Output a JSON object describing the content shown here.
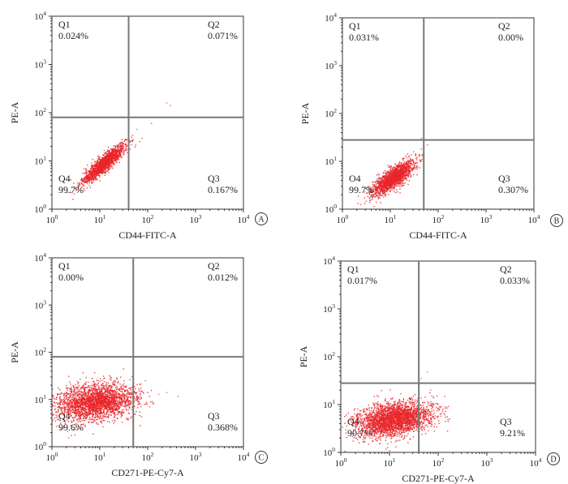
{
  "chart_data": [
    {
      "type": "scatter",
      "panel_label": "A",
      "xlabel": "CD44-FITC-A",
      "ylabel": "PE-A",
      "x_scale": "log",
      "y_scale": "log",
      "xlim": [
        1,
        10000
      ],
      "ylim": [
        1,
        10000
      ],
      "x_ticks": [
        {
          "base": "10",
          "exp": "0"
        },
        {
          "base": "10",
          "exp": "1"
        },
        {
          "base": "10",
          "exp": "2"
        },
        {
          "base": "10",
          "exp": "3"
        },
        {
          "base": "10",
          "exp": "4"
        }
      ],
      "y_ticks": [
        {
          "base": "10",
          "exp": "0"
        },
        {
          "base": "10",
          "exp": "1"
        },
        {
          "base": "10",
          "exp": "2"
        },
        {
          "base": "10",
          "exp": "3"
        },
        {
          "base": "10",
          "exp": "4"
        }
      ],
      "gate": {
        "x": 40,
        "y": 80
      },
      "quadrants": [
        {
          "name": "Q1",
          "percent": "0.024%",
          "position": "top-left"
        },
        {
          "name": "Q2",
          "percent": "0.071%",
          "position": "top-right"
        },
        {
          "name": "Q3",
          "percent": "0.167%",
          "position": "bottom-right"
        },
        {
          "name": "Q4",
          "percent": "99.7%",
          "position": "bottom-left"
        }
      ],
      "population": {
        "center_x": 12,
        "center_y": 9,
        "spread_x": 0.22,
        "spread_y": 0.2,
        "correlation": 0.9,
        "count": 1600
      },
      "sparse_events": [
        [
          250,
          160
        ],
        [
          300,
          140
        ],
        [
          120,
          60
        ],
        [
          60,
          45
        ]
      ],
      "point_color": "#e8262a",
      "grid": false
    },
    {
      "type": "scatter",
      "panel_label": "B",
      "xlabel": "CD44-FITC-A",
      "ylabel": "PE-A",
      "x_scale": "log",
      "y_scale": "log",
      "xlim": [
        1,
        10000
      ],
      "ylim": [
        1,
        10000
      ],
      "x_ticks": [
        {
          "base": "10",
          "exp": "0"
        },
        {
          "base": "10",
          "exp": "1"
        },
        {
          "base": "10",
          "exp": "2"
        },
        {
          "base": "10",
          "exp": "3"
        },
        {
          "base": "10",
          "exp": "4"
        }
      ],
      "y_ticks": [
        {
          "base": "10",
          "exp": "0"
        },
        {
          "base": "10",
          "exp": "1"
        },
        {
          "base": "10",
          "exp": "2"
        },
        {
          "base": "10",
          "exp": "3"
        },
        {
          "base": "10",
          "exp": "4"
        }
      ],
      "gate": {
        "x": 50,
        "y": 28
      },
      "quadrants": [
        {
          "name": "Q1",
          "percent": "0.031%",
          "position": "top-left"
        },
        {
          "name": "Q2",
          "percent": "0.00%",
          "position": "top-right"
        },
        {
          "name": "Q3",
          "percent": "0.307%",
          "position": "bottom-right"
        },
        {
          "name": "O4",
          "percent": "99.7%",
          "position": "bottom-left"
        }
      ],
      "population": {
        "center_x": 11,
        "center_y": 4.5,
        "spread_x": 0.22,
        "spread_y": 0.18,
        "correlation": 0.8,
        "count": 1700
      },
      "sparse_events": [
        [
          60,
          22
        ],
        [
          45,
          30
        ]
      ],
      "point_color": "#e8262a",
      "grid": false
    },
    {
      "type": "scatter",
      "panel_label": "C",
      "xlabel": "CD271-PE-Cy7-A",
      "ylabel": "PE-A",
      "x_scale": "log",
      "y_scale": "log",
      "xlim": [
        1,
        10000
      ],
      "ylim": [
        1,
        10000
      ],
      "x_ticks": [
        {
          "base": "10",
          "exp": "0"
        },
        {
          "base": "10",
          "exp": "1"
        },
        {
          "base": "10",
          "exp": "2"
        },
        {
          "base": "10",
          "exp": "3"
        },
        {
          "base": "10",
          "exp": "4"
        }
      ],
      "y_ticks": [
        {
          "base": "10",
          "exp": "0"
        },
        {
          "base": "10",
          "exp": "1"
        },
        {
          "base": "10",
          "exp": "2"
        },
        {
          "base": "10",
          "exp": "3"
        },
        {
          "base": "10",
          "exp": "4"
        }
      ],
      "gate": {
        "x": 50,
        "y": 80
      },
      "quadrants": [
        {
          "name": "Q1",
          "percent": "0.00%",
          "position": "top-left"
        },
        {
          "name": "Q2",
          "percent": "0.012%",
          "position": "top-right"
        },
        {
          "name": "Q3",
          "percent": "0.368%",
          "position": "bottom-right"
        },
        {
          "name": "Q4",
          "percent": "99.6%",
          "position": "bottom-left"
        }
      ],
      "population": {
        "center_x": 8,
        "center_y": 9,
        "spread_x": 0.42,
        "spread_y": 0.2,
        "correlation": 0.25,
        "count": 2600
      },
      "sparse_events": [
        [
          170,
          13
        ],
        [
          250,
          14
        ],
        [
          90,
          25
        ],
        [
          110,
          7
        ]
      ],
      "point_color": "#e8262a",
      "grid": false
    },
    {
      "type": "scatter",
      "panel_label": "D",
      "xlabel": "CD271-PE-Cy7-A",
      "ylabel": "PE-A",
      "x_scale": "log",
      "y_scale": "log",
      "xlim": [
        1,
        10000
      ],
      "ylim": [
        1,
        10000
      ],
      "x_ticks": [
        {
          "base": "10",
          "exp": "0"
        },
        {
          "base": "10",
          "exp": "1"
        },
        {
          "base": "10",
          "exp": "2"
        },
        {
          "base": "10",
          "exp": "3"
        },
        {
          "base": "10",
          "exp": "4"
        }
      ],
      "y_ticks": [
        {
          "base": "10",
          "exp": "0"
        },
        {
          "base": "10",
          "exp": "1"
        },
        {
          "base": "10",
          "exp": "2"
        },
        {
          "base": "10",
          "exp": "3"
        },
        {
          "base": "10",
          "exp": "4"
        }
      ],
      "gate": {
        "x": 40,
        "y": 28
      },
      "quadrants": [
        {
          "name": "Q1",
          "percent": "0.017%",
          "position": "top-left"
        },
        {
          "name": "Q2",
          "percent": "0.033%",
          "position": "top-right"
        },
        {
          "name": "Q3",
          "percent": "9.21%",
          "position": "bottom-right"
        },
        {
          "name": "Q4",
          "percent": "90.7%",
          "position": "bottom-left"
        }
      ],
      "population": {
        "center_x": 12,
        "center_y": 5,
        "spread_x": 0.38,
        "spread_y": 0.18,
        "correlation": 0.3,
        "count": 2800
      },
      "sparse_events": [
        [
          60,
          48
        ],
        [
          45,
          35
        ],
        [
          70,
          20
        ],
        [
          80,
          14
        ]
      ],
      "point_color": "#e8262a",
      "grid": false
    }
  ]
}
